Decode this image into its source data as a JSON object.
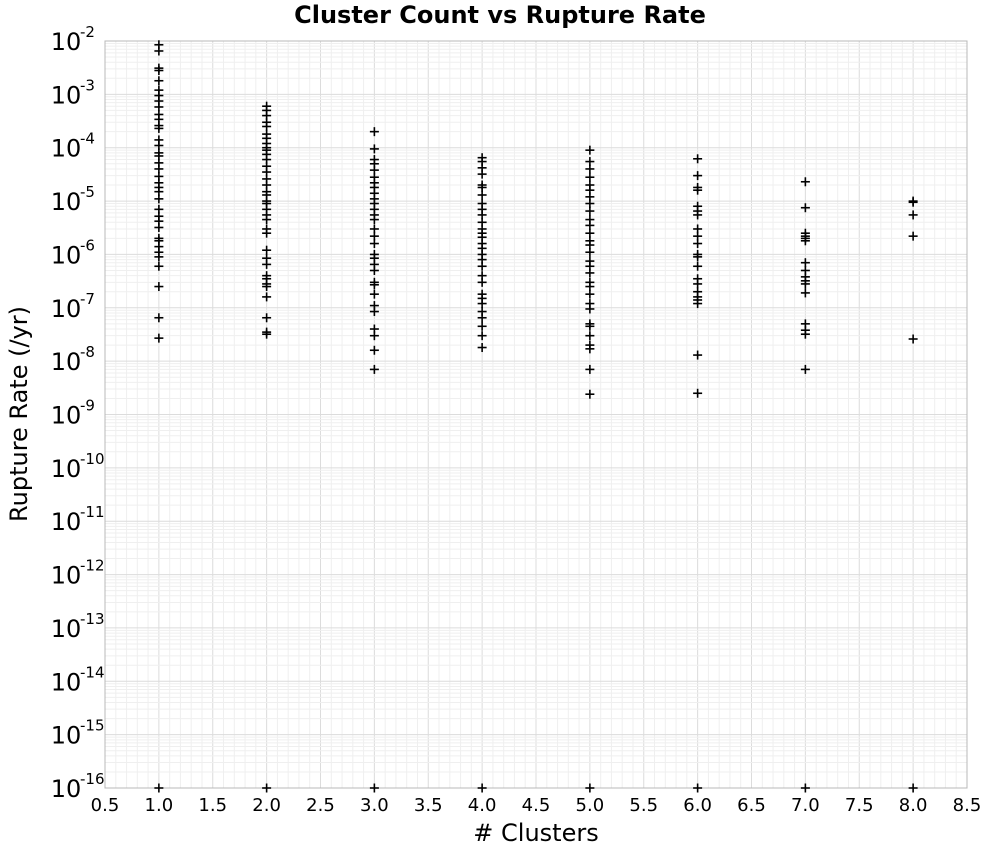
{
  "chart_data": {
    "type": "scatter",
    "title": "Cluster Count vs Rupture Rate",
    "xlabel": "# Clusters",
    "ylabel": "Rupture Rate (/yr)",
    "xlim": [
      0.5,
      8.5
    ],
    "ylim": [
      1e-16,
      0.01
    ],
    "yscale": "log",
    "grid": true,
    "marker": "plus",
    "marker_color": "#000000",
    "xticks": [
      "0.5",
      "1.0",
      "1.5",
      "2.0",
      "2.5",
      "3.0",
      "3.5",
      "4.0",
      "4.5",
      "5.0",
      "5.5",
      "6.0",
      "6.5",
      "7.0",
      "7.5",
      "8.0",
      "8.5"
    ],
    "yticks": [
      {
        "base": "10",
        "exp": "-2"
      },
      {
        "base": "10",
        "exp": "-3"
      },
      {
        "base": "10",
        "exp": "-4"
      },
      {
        "base": "10",
        "exp": "-5"
      },
      {
        "base": "10",
        "exp": "-6"
      },
      {
        "base": "10",
        "exp": "-7"
      },
      {
        "base": "10",
        "exp": "-8"
      },
      {
        "base": "10",
        "exp": "-9"
      },
      {
        "base": "10",
        "exp": "-10"
      },
      {
        "base": "10",
        "exp": "-11"
      },
      {
        "base": "10",
        "exp": "-12"
      },
      {
        "base": "10",
        "exp": "-13"
      },
      {
        "base": "10",
        "exp": "-14"
      },
      {
        "base": "10",
        "exp": "-15"
      },
      {
        "base": "10",
        "exp": "-16"
      }
    ],
    "series": [
      {
        "points": [
          [
            1,
            0.0085
          ],
          [
            1,
            0.0065
          ],
          [
            1,
            0.0031
          ],
          [
            1,
            0.0028
          ],
          [
            1,
            0.0018
          ],
          [
            1,
            0.0012
          ],
          [
            1,
            0.00095
          ],
          [
            1,
            0.00075
          ],
          [
            1,
            0.00058
          ],
          [
            1,
            0.00042
          ],
          [
            1,
            0.00034
          ],
          [
            1,
            0.00026
          ],
          [
            1,
            0.00023
          ],
          [
            1,
            0.00014
          ],
          [
            1,
            0.00011
          ],
          [
            1,
            8e-05
          ],
          [
            1,
            7e-05
          ],
          [
            1,
            5.2e-05
          ],
          [
            1,
            4e-05
          ],
          [
            1,
            2.9e-05
          ],
          [
            1,
            2.2e-05
          ],
          [
            1,
            1.8e-05
          ],
          [
            1,
            1.5e-05
          ],
          [
            1,
            1.1e-05
          ],
          [
            1,
            7e-06
          ],
          [
            1,
            5.2e-06
          ],
          [
            1,
            4.2e-06
          ],
          [
            1,
            3.2e-06
          ],
          [
            1,
            2e-06
          ],
          [
            1,
            1.8e-06
          ],
          [
            1,
            1.4e-06
          ],
          [
            1,
            1.1e-06
          ],
          [
            1,
            9e-07
          ],
          [
            1,
            6e-07
          ],
          [
            1,
            2.5e-07
          ],
          [
            1,
            6.5e-08
          ],
          [
            1,
            2.7e-08
          ],
          [
            1,
            1e-16
          ],
          [
            2,
            0.0006
          ],
          [
            2,
            0.0005
          ],
          [
            2,
            0.0004
          ],
          [
            2,
            0.0003
          ],
          [
            2,
            0.00025
          ],
          [
            2,
            0.00018
          ],
          [
            2,
            0.00015
          ],
          [
            2,
            0.00012
          ],
          [
            2,
            0.0001
          ],
          [
            2,
            9e-05
          ],
          [
            2,
            7.5e-05
          ],
          [
            2,
            6e-05
          ],
          [
            2,
            4.5e-05
          ],
          [
            2,
            3.5e-05
          ],
          [
            2,
            2.6e-05
          ],
          [
            2,
            2e-05
          ],
          [
            2,
            1.5e-05
          ],
          [
            2,
            1.3e-05
          ],
          [
            2,
            1e-05
          ],
          [
            2,
            9e-06
          ],
          [
            2,
            7e-06
          ],
          [
            2,
            5.5e-06
          ],
          [
            2,
            4.5e-06
          ],
          [
            2,
            3e-06
          ],
          [
            2,
            2.5e-06
          ],
          [
            2,
            1.2e-06
          ],
          [
            2,
            8.5e-07
          ],
          [
            2,
            6.5e-07
          ],
          [
            2,
            4e-07
          ],
          [
            2,
            3.5e-07
          ],
          [
            2,
            2.8e-07
          ],
          [
            2,
            2.5e-07
          ],
          [
            2,
            1.6e-07
          ],
          [
            2,
            6.5e-08
          ],
          [
            2,
            3.5e-08
          ],
          [
            2,
            3.2e-08
          ],
          [
            2,
            1e-16
          ],
          [
            3,
            0.0002
          ],
          [
            3,
            9.5e-05
          ],
          [
            3,
            6e-05
          ],
          [
            3,
            5e-05
          ],
          [
            3,
            3.8e-05
          ],
          [
            3,
            2.8e-05
          ],
          [
            3,
            2.2e-05
          ],
          [
            3,
            1.8e-05
          ],
          [
            3,
            1.4e-05
          ],
          [
            3,
            1.1e-05
          ],
          [
            3,
            9e-06
          ],
          [
            3,
            7e-06
          ],
          [
            3,
            5.5e-06
          ],
          [
            3,
            4.5e-06
          ],
          [
            3,
            3e-06
          ],
          [
            3,
            2.2e-06
          ],
          [
            3,
            1.6e-06
          ],
          [
            3,
            1e-06
          ],
          [
            3,
            8.5e-07
          ],
          [
            3,
            6.5e-07
          ],
          [
            3,
            5e-07
          ],
          [
            3,
            3e-07
          ],
          [
            3,
            2.7e-07
          ],
          [
            3,
            1.8e-07
          ],
          [
            3,
            1.1e-07
          ],
          [
            3,
            8.5e-08
          ],
          [
            3,
            4e-08
          ],
          [
            3,
            3e-08
          ],
          [
            3,
            1.6e-08
          ],
          [
            3,
            7e-09
          ],
          [
            3,
            1e-16
          ],
          [
            4,
            6.5e-05
          ],
          [
            4,
            5.5e-05
          ],
          [
            4,
            4.2e-05
          ],
          [
            4,
            3.2e-05
          ],
          [
            4,
            2e-05
          ],
          [
            4,
            1.8e-05
          ],
          [
            4,
            1.3e-05
          ],
          [
            4,
            9e-06
          ],
          [
            4,
            7e-06
          ],
          [
            4,
            5.5e-06
          ],
          [
            4,
            4e-06
          ],
          [
            4,
            3e-06
          ],
          [
            4,
            2.5e-06
          ],
          [
            4,
            2.1e-06
          ],
          [
            4,
            1.6e-06
          ],
          [
            4,
            1.3e-06
          ],
          [
            4,
            1e-06
          ],
          [
            4,
            8e-07
          ],
          [
            4,
            6e-07
          ],
          [
            4,
            4e-07
          ],
          [
            4,
            3e-07
          ],
          [
            4,
            1.8e-07
          ],
          [
            4,
            1.5e-07
          ],
          [
            4,
            1.2e-07
          ],
          [
            4,
            8.5e-08
          ],
          [
            4,
            6.5e-08
          ],
          [
            4,
            4.5e-08
          ],
          [
            4,
            3e-08
          ],
          [
            4,
            1.8e-08
          ],
          [
            4,
            1e-16
          ],
          [
            5,
            9e-05
          ],
          [
            5,
            5.5e-05
          ],
          [
            5,
            4e-05
          ],
          [
            5,
            2.8e-05
          ],
          [
            5,
            2e-05
          ],
          [
            5,
            1.6e-05
          ],
          [
            5,
            1.2e-05
          ],
          [
            5,
            9e-06
          ],
          [
            5,
            6.5e-06
          ],
          [
            5,
            4.5e-06
          ],
          [
            5,
            3.5e-06
          ],
          [
            5,
            2.5e-06
          ],
          [
            5,
            1.8e-06
          ],
          [
            5,
            1.5e-06
          ],
          [
            5,
            1.1e-06
          ],
          [
            5,
            7.5e-07
          ],
          [
            5,
            6e-07
          ],
          [
            5,
            4.5e-07
          ],
          [
            5,
            3e-07
          ],
          [
            5,
            2.5e-07
          ],
          [
            5,
            1.8e-07
          ],
          [
            5,
            1.2e-07
          ],
          [
            5,
            9.5e-08
          ],
          [
            5,
            5e-08
          ],
          [
            5,
            4.5e-08
          ],
          [
            5,
            3e-08
          ],
          [
            5,
            2e-08
          ],
          [
            5,
            1.7e-08
          ],
          [
            5,
            7e-09
          ],
          [
            5,
            2.4e-09
          ],
          [
            5,
            1e-16
          ],
          [
            6,
            6.2e-05
          ],
          [
            6,
            3e-05
          ],
          [
            6,
            1.8e-05
          ],
          [
            6,
            1.6e-05
          ],
          [
            6,
            8e-06
          ],
          [
            6,
            6.5e-06
          ],
          [
            6,
            5.5e-06
          ],
          [
            6,
            3e-06
          ],
          [
            6,
            2.2e-06
          ],
          [
            6,
            1.6e-06
          ],
          [
            6,
            1e-06
          ],
          [
            6,
            9e-07
          ],
          [
            6,
            6e-07
          ],
          [
            6,
            3.5e-07
          ],
          [
            6,
            2.8e-07
          ],
          [
            6,
            2e-07
          ],
          [
            6,
            1.6e-07
          ],
          [
            6,
            1.4e-07
          ],
          [
            6,
            1.2e-07
          ],
          [
            6,
            1.3e-08
          ],
          [
            6,
            2.5e-09
          ],
          [
            6,
            1e-16
          ],
          [
            7,
            2.3e-05
          ],
          [
            7,
            7.5e-06
          ],
          [
            7,
            2.5e-06
          ],
          [
            7,
            2.2e-06
          ],
          [
            7,
            2e-06
          ],
          [
            7,
            1.8e-06
          ],
          [
            7,
            7e-07
          ],
          [
            7,
            5e-07
          ],
          [
            7,
            3.8e-07
          ],
          [
            7,
            3.2e-07
          ],
          [
            7,
            2.8e-07
          ],
          [
            7,
            1.9e-07
          ],
          [
            7,
            5e-08
          ],
          [
            7,
            3.8e-08
          ],
          [
            7,
            3.2e-08
          ],
          [
            7,
            7e-09
          ],
          [
            7,
            1e-16
          ],
          [
            8,
            1e-05
          ],
          [
            8,
            9.5e-06
          ],
          [
            8,
            5.5e-06
          ],
          [
            8,
            2.2e-06
          ],
          [
            8,
            2.6e-08
          ],
          [
            8,
            1e-16
          ]
        ]
      }
    ]
  }
}
